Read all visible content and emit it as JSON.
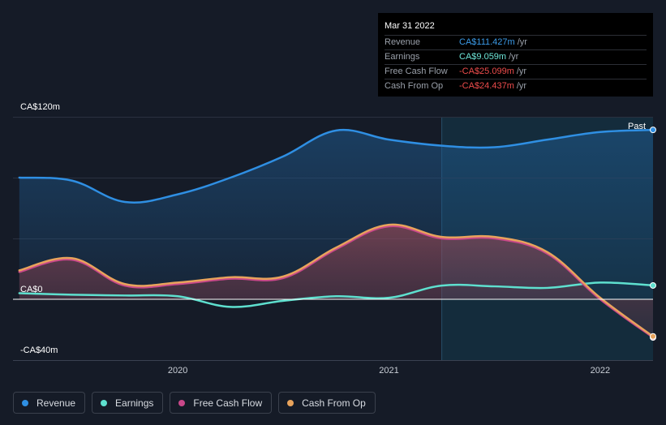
{
  "tooltip": {
    "date": "Mar 31 2022",
    "rows": [
      {
        "label": "Revenue",
        "value": "CA$111.427m",
        "unit": "/yr",
        "color": "#3b9be8"
      },
      {
        "label": "Earnings",
        "value": "CA$9.059m",
        "unit": "/yr",
        "color": "#6ee7d9"
      },
      {
        "label": "Free Cash Flow",
        "value": "-CA$25.099m",
        "unit": "/yr",
        "color": "#ee4c4c"
      },
      {
        "label": "Cash From Op",
        "value": "-CA$24.437m",
        "unit": "/yr",
        "color": "#ee4c4c"
      }
    ]
  },
  "past_label": "Past",
  "legend": [
    {
      "label": "Revenue",
      "color": "#2f8fe3"
    },
    {
      "label": "Earnings",
      "color": "#5ee0cf"
    },
    {
      "label": "Free Cash Flow",
      "color": "#c9488a"
    },
    {
      "label": "Cash From Op",
      "color": "#e8a35c"
    }
  ],
  "chart_data": {
    "type": "line",
    "y_tick_labels": [
      "CA$120m",
      "CA$0",
      "-CA$40m"
    ],
    "x_tick_labels": [
      "2020",
      "2021",
      "2022"
    ],
    "ylim": [
      -40,
      120
    ],
    "x_range": [
      2019.22,
      2022.25
    ],
    "past_region_start": 2021.25,
    "series": [
      {
        "name": "Revenue",
        "color": "#2f8fe3",
        "x": [
          2019.25,
          2019.5,
          2019.75,
          2020.0,
          2020.25,
          2020.5,
          2020.75,
          2021.0,
          2021.25,
          2021.5,
          2021.75,
          2022.0,
          2022.25
        ],
        "y": [
          80,
          78,
          64,
          69,
          80,
          94,
          111,
          105,
          101,
          100,
          105,
          110,
          111.4
        ]
      },
      {
        "name": "Earnings",
        "color": "#5ee0cf",
        "x": [
          2019.25,
          2019.5,
          2019.75,
          2020.0,
          2020.25,
          2020.5,
          2020.75,
          2021.0,
          2021.25,
          2021.5,
          2021.75,
          2022.0,
          2022.25
        ],
        "y": [
          4,
          3,
          2.5,
          2,
          -5,
          -1,
          2,
          1,
          9,
          8.5,
          7.5,
          11,
          9.1
        ]
      },
      {
        "name": "Free Cash Flow",
        "color": "#c9488a",
        "x": [
          2019.25,
          2019.5,
          2019.75,
          2020.0,
          2020.25,
          2020.5,
          2020.75,
          2021.0,
          2021.25,
          2021.5,
          2021.75,
          2022.0,
          2022.25
        ],
        "y": [
          18,
          26,
          9,
          10,
          13.5,
          14,
          33,
          48,
          40,
          40,
          30,
          0,
          -25.1
        ]
      },
      {
        "name": "Cash From Op",
        "color": "#e8a35c",
        "x": [
          2019.25,
          2019.5,
          2019.75,
          2020.0,
          2020.25,
          2020.5,
          2020.75,
          2021.0,
          2021.25,
          2021.5,
          2021.75,
          2022.0,
          2022.25
        ],
        "y": [
          19,
          27,
          10,
          11,
          14.5,
          15,
          34,
          49,
          41,
          41,
          31,
          1,
          -24.4
        ]
      }
    ]
  }
}
